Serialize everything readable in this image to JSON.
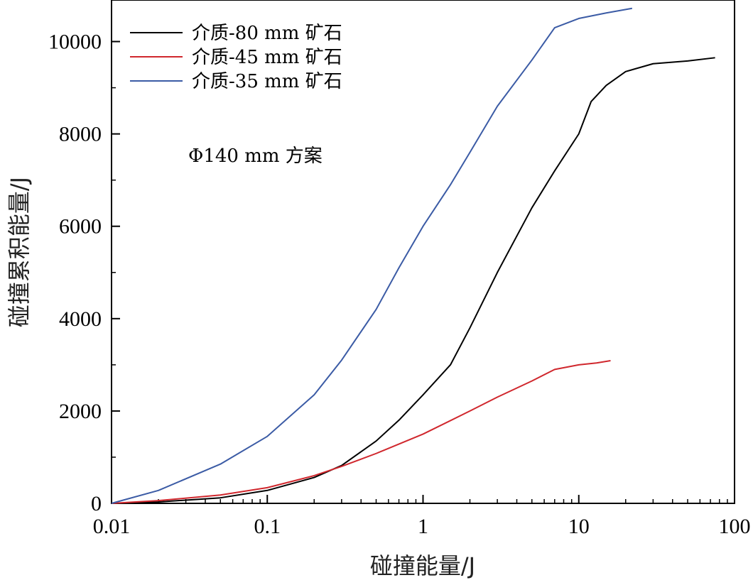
{
  "chart_data": {
    "type": "line",
    "title": "",
    "xlabel": "碰撞能量/J",
    "ylabel": "碰撞累积能量/J",
    "x_scale": "log",
    "xlim": [
      0.01,
      100
    ],
    "ylim": [
      0,
      10900
    ],
    "x_ticks": [
      0.01,
      0.1,
      1,
      10,
      100
    ],
    "x_tick_labels": [
      "0.01",
      "0.1",
      "1",
      "10",
      "100"
    ],
    "y_ticks": [
      0,
      2000,
      4000,
      6000,
      8000,
      10000
    ],
    "y_tick_labels": [
      "0",
      "2000",
      "4000",
      "6000",
      "8000",
      "10000"
    ],
    "grid": false,
    "legend_position": "top-left",
    "annotation": "Φ140 mm 方案",
    "series": [
      {
        "name": "介质-80 mm 矿石",
        "color": "#000000",
        "points": [
          [
            0.01,
            0
          ],
          [
            0.02,
            30
          ],
          [
            0.05,
            120
          ],
          [
            0.1,
            280
          ],
          [
            0.2,
            560
          ],
          [
            0.3,
            820
          ],
          [
            0.5,
            1350
          ],
          [
            0.7,
            1800
          ],
          [
            1,
            2350
          ],
          [
            1.5,
            3000
          ],
          [
            2,
            3800
          ],
          [
            3,
            5000
          ],
          [
            5,
            6400
          ],
          [
            7,
            7200
          ],
          [
            10,
            8000
          ],
          [
            12,
            8700
          ],
          [
            15,
            9050
          ],
          [
            20,
            9350
          ],
          [
            30,
            9520
          ],
          [
            50,
            9580
          ],
          [
            75,
            9650
          ]
        ]
      },
      {
        "name": "介质-45 mm 矿石",
        "color": "#d0272d",
        "points": [
          [
            0.01,
            0
          ],
          [
            0.02,
            60
          ],
          [
            0.05,
            180
          ],
          [
            0.1,
            340
          ],
          [
            0.2,
            600
          ],
          [
            0.3,
            800
          ],
          [
            0.5,
            1080
          ],
          [
            1,
            1500
          ],
          [
            2,
            2000
          ],
          [
            3,
            2300
          ],
          [
            5,
            2650
          ],
          [
            7,
            2900
          ],
          [
            10,
            3000
          ],
          [
            13,
            3040
          ],
          [
            16,
            3090
          ]
        ]
      },
      {
        "name": "介质-35 mm 矿石",
        "color": "#3b5ba5",
        "points": [
          [
            0.01,
            0
          ],
          [
            0.02,
            280
          ],
          [
            0.05,
            850
          ],
          [
            0.1,
            1450
          ],
          [
            0.2,
            2350
          ],
          [
            0.3,
            3100
          ],
          [
            0.5,
            4200
          ],
          [
            0.7,
            5100
          ],
          [
            1,
            6000
          ],
          [
            1.5,
            6900
          ],
          [
            2,
            7600
          ],
          [
            3,
            8600
          ],
          [
            5,
            9600
          ],
          [
            7,
            10300
          ],
          [
            10,
            10500
          ],
          [
            15,
            10620
          ],
          [
            22,
            10720
          ]
        ]
      }
    ]
  }
}
